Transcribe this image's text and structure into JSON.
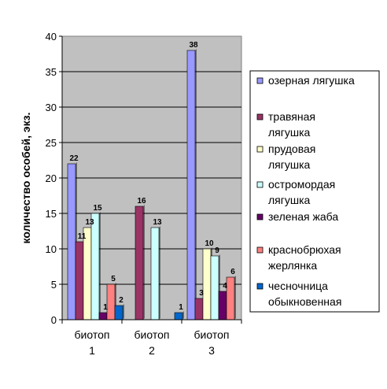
{
  "chart_data": {
    "type": "bar",
    "ylabel": "количество особей, экз.",
    "ylim": [
      0,
      40
    ],
    "yticks": [
      0,
      5,
      10,
      15,
      20,
      25,
      30,
      35,
      40
    ],
    "grid": true,
    "legend_position": "right",
    "categories": [
      [
        "биотоп",
        "1"
      ],
      [
        "биотоп",
        "2"
      ],
      [
        "биотоп",
        "3"
      ]
    ],
    "series": [
      {
        "name": [
          "озерная лягушка"
        ],
        "color": "#9999ff",
        "values": [
          22,
          0,
          38
        ],
        "labels": [
          "22",
          "",
          "38"
        ]
      },
      {
        "name": [
          "травяная",
          "лягушка"
        ],
        "color": "#993366",
        "values": [
          11,
          16,
          3
        ],
        "labels": [
          "11",
          "16",
          "3"
        ]
      },
      {
        "name": [
          "прудовая",
          "лягушка"
        ],
        "color": "#ffffcc",
        "values": [
          13,
          0,
          10
        ],
        "labels": [
          "13",
          "",
          "10"
        ]
      },
      {
        "name": [
          "остромордая",
          "лягушка"
        ],
        "color": "#ccffff",
        "values": [
          15,
          13,
          9
        ],
        "labels": [
          "15",
          "13",
          "9"
        ]
      },
      {
        "name": [
          "зеленая жаба"
        ],
        "color": "#660066",
        "values": [
          1,
          0,
          4
        ],
        "labels": [
          "1",
          "",
          "4"
        ]
      },
      {
        "name": [
          "краснобрюхая",
          "жерлянка"
        ],
        "color": "#ff8080",
        "values": [
          5,
          0,
          6
        ],
        "labels": [
          "5",
          "",
          "6"
        ]
      },
      {
        "name": [
          "чесночница",
          "обыкновенная"
        ],
        "color": "#0066cc",
        "values": [
          2,
          1,
          0
        ],
        "labels": [
          "2",
          "1",
          ""
        ]
      }
    ]
  }
}
